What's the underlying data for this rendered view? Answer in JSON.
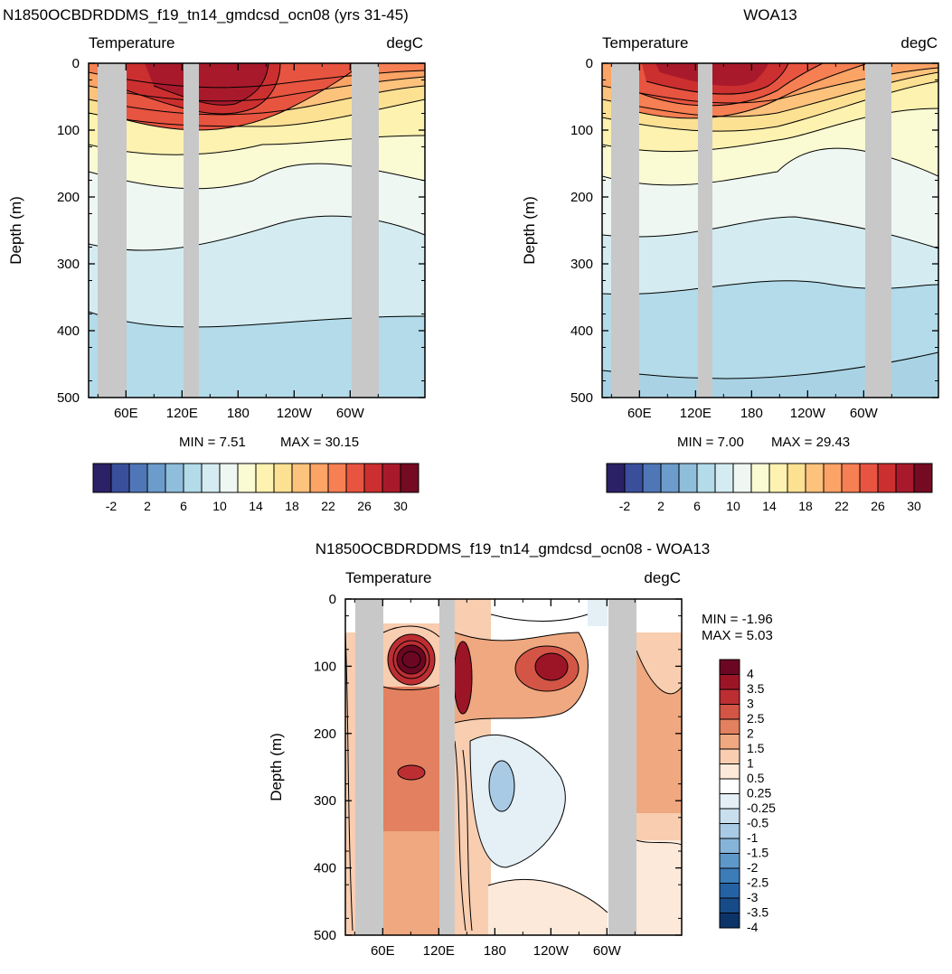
{
  "chart_data": [
    {
      "type": "heatmap",
      "title": "N1850OCBDRDDMS_f19_tn14_gmdcsd_ocn08 (yrs 31-45)",
      "subtitle_left": "Temperature",
      "subtitle_right": "degC",
      "ylabel": "Depth (m)",
      "ylim": [
        500,
        0
      ],
      "y_ticks": [
        "0",
        "100",
        "200",
        "300",
        "400",
        "500"
      ],
      "x_ticks": [
        "60E",
        "120E",
        "180",
        "120W",
        "60W"
      ],
      "min_label": "MIN =   7.51",
      "max_label": "MAX =  30.15",
      "colorbar_labels": [
        "-2",
        "2",
        "6",
        "10",
        "14",
        "18",
        "22",
        "26",
        "30"
      ],
      "levels": [
        -4,
        -2,
        0,
        2,
        4,
        6,
        8,
        10,
        12,
        14,
        16,
        18,
        20,
        22,
        24,
        26,
        28,
        30
      ]
    },
    {
      "type": "heatmap",
      "title": "WOA13",
      "subtitle_left": "Temperature",
      "subtitle_right": "degC",
      "ylabel": "Depth (m)",
      "ylim": [
        500,
        0
      ],
      "y_ticks": [
        "0",
        "100",
        "200",
        "300",
        "400",
        "500"
      ],
      "x_ticks": [
        "60E",
        "120E",
        "180",
        "120W",
        "60W"
      ],
      "min_label": "MIN =   7.00",
      "max_label": "MAX =  29.43",
      "colorbar_labels": [
        "-2",
        "2",
        "6",
        "10",
        "14",
        "18",
        "22",
        "26",
        "30"
      ],
      "levels": [
        -4,
        -2,
        0,
        2,
        4,
        6,
        8,
        10,
        12,
        14,
        16,
        18,
        20,
        22,
        24,
        26,
        28,
        30
      ]
    },
    {
      "type": "heatmap",
      "title": "N1850OCBDRDDMS_f19_tn14_gmdcsd_ocn08 - WOA13",
      "subtitle_left": "Temperature",
      "subtitle_right": "degC",
      "ylabel": "Depth (m)",
      "ylim": [
        500,
        0
      ],
      "y_ticks": [
        "0",
        "100",
        "200",
        "300",
        "400",
        "500"
      ],
      "x_ticks": [
        "60E",
        "120E",
        "180",
        "120W",
        "60W"
      ],
      "min_label": "MIN =  -1.96",
      "max_label": "MAX =   5.03",
      "colorbar_labels": [
        "4",
        "3.5",
        "3",
        "2.5",
        "2",
        "1.5",
        "1",
        "0.5",
        "0.25",
        "-0.25",
        "-0.5",
        "-1",
        "-1.5",
        "-2",
        "-2.5",
        "-3",
        "-3.5",
        "-4"
      ]
    }
  ],
  "colors": {
    "temp_scale": [
      "#2a2166",
      "#3a4f9b",
      "#4f77b8",
      "#6b9ccc",
      "#8fbedb",
      "#b3dbe9",
      "#d4ecf1",
      "#eef7f2",
      "#fafbd3",
      "#fef2b0",
      "#fde193",
      "#fdc27c",
      "#fca366",
      "#f67f53",
      "#e75440",
      "#cc2f2f",
      "#a81a2b",
      "#740b22"
    ],
    "diff_scale": [
      "#6b0722",
      "#9c1527",
      "#bd2e33",
      "#d35546",
      "#e2805f",
      "#efa880",
      "#f8cdb0",
      "#fde9da",
      "#ffffff",
      "#e4eff6",
      "#c9dfee",
      "#a9cae4",
      "#86b3d8",
      "#5e98c9",
      "#3c7cb8",
      "#2562a3",
      "#174b88",
      "#0c3468"
    ],
    "land": "#c8c8c8"
  }
}
